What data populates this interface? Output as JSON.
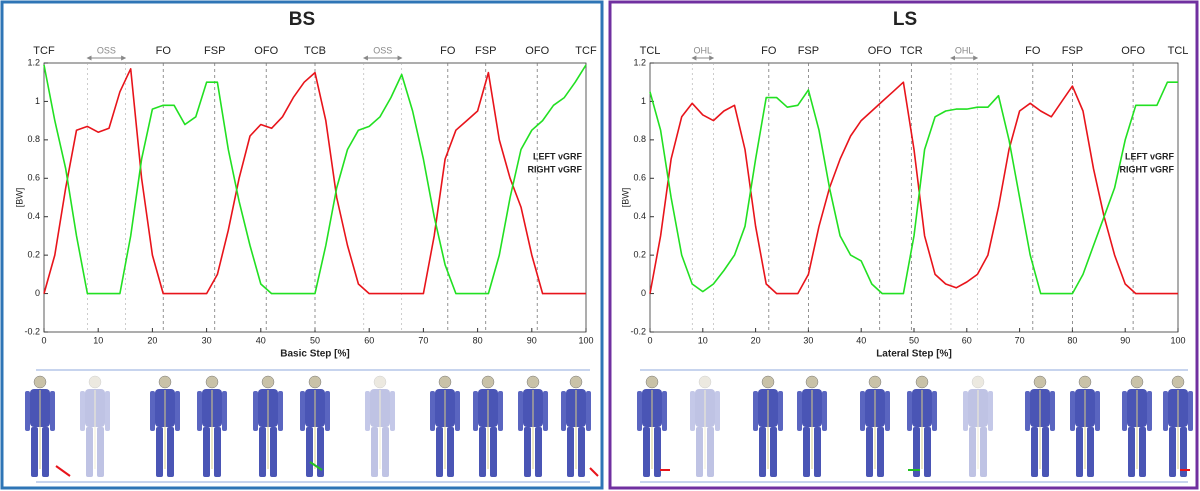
{
  "chart_data": [
    {
      "type": "line",
      "title": "BS",
      "x_label": "Basic Step [%]",
      "y_label": "[BW]",
      "xlim": [
        0,
        100
      ],
      "ylim": [
        -0.2,
        1.2
      ],
      "xticks": [
        0,
        10,
        20,
        30,
        40,
        50,
        60,
        70,
        80,
        90,
        100
      ],
      "yticks": [
        -0.2,
        0,
        0.2,
        0.4,
        0.6,
        0.8,
        1,
        1.2
      ],
      "annotations": [
        {
          "text": "TCF",
          "x": 0
        },
        {
          "text": "FO",
          "x": 22
        },
        {
          "text": "FSP",
          "x": 31.5
        },
        {
          "text": "OFO",
          "x": 41
        },
        {
          "text": "TCB",
          "x": 50
        },
        {
          "text": "FO",
          "x": 74.5
        },
        {
          "text": "FSP",
          "x": 81.5
        },
        {
          "text": "OFO",
          "x": 91
        },
        {
          "text": "TCF",
          "x": 100
        }
      ],
      "spans": [
        {
          "text": "OSS",
          "x0": 8,
          "x1": 15
        },
        {
          "text": "OSS",
          "x0": 59,
          "x1": 66
        }
      ],
      "x": [
        0,
        2,
        4,
        6,
        8,
        10,
        12,
        14,
        16,
        18,
        20,
        22,
        24,
        26,
        28,
        30,
        32,
        34,
        36,
        38,
        40,
        42,
        44,
        46,
        48,
        50,
        52,
        54,
        56,
        58,
        60,
        62,
        64,
        66,
        68,
        70,
        72,
        74,
        76,
        78,
        80,
        82,
        84,
        86,
        88,
        90,
        92,
        94,
        96,
        98,
        100
      ],
      "series": [
        {
          "name": "LEFT vGRF",
          "color": "#e8141b",
          "values": [
            0,
            0.2,
            0.55,
            0.85,
            0.87,
            0.84,
            0.86,
            1.05,
            1.17,
            0.6,
            0.2,
            0,
            0,
            0,
            0,
            0,
            0.1,
            0.33,
            0.6,
            0.82,
            0.88,
            0.86,
            0.92,
            1.02,
            1.1,
            1.15,
            0.9,
            0.5,
            0.25,
            0.05,
            0,
            0,
            0,
            0,
            0,
            0,
            0.3,
            0.7,
            0.85,
            0.9,
            0.95,
            1.15,
            0.8,
            0.6,
            0.45,
            0.2,
            0,
            0,
            0,
            0,
            0
          ]
        },
        {
          "name": "RIGHT vGRF",
          "color": "#22e022",
          "values": [
            1.19,
            0.9,
            0.65,
            0.3,
            0,
            0,
            0,
            0,
            0.3,
            0.7,
            0.96,
            0.98,
            0.98,
            0.88,
            0.92,
            1.1,
            1.1,
            0.75,
            0.48,
            0.25,
            0.05,
            0,
            0,
            0,
            0,
            0,
            0.25,
            0.55,
            0.75,
            0.85,
            0.87,
            0.92,
            1.02,
            1.14,
            0.95,
            0.7,
            0.4,
            0.15,
            0,
            0,
            0,
            0,
            0.2,
            0.5,
            0.75,
            0.85,
            0.9,
            0.98,
            1.02,
            1.1,
            1.19
          ]
        }
      ]
    },
    {
      "type": "line",
      "title": "LS",
      "x_label": "Lateral Step [%]",
      "y_label": "[BW]",
      "xlim": [
        0,
        100
      ],
      "ylim": [
        -0.2,
        1.2
      ],
      "xticks": [
        0,
        10,
        20,
        30,
        40,
        50,
        60,
        70,
        80,
        90,
        100
      ],
      "yticks": [
        -0.2,
        0,
        0.2,
        0.4,
        0.6,
        0.8,
        1,
        1.2
      ],
      "annotations": [
        {
          "text": "TCL",
          "x": 0
        },
        {
          "text": "FO",
          "x": 22.5
        },
        {
          "text": "FSP",
          "x": 30
        },
        {
          "text": "OFO",
          "x": 43.5
        },
        {
          "text": "TCR",
          "x": 49.5
        },
        {
          "text": "FO",
          "x": 72.5
        },
        {
          "text": "FSP",
          "x": 80
        },
        {
          "text": "OFO",
          "x": 91.5
        },
        {
          "text": "TCL",
          "x": 100
        }
      ],
      "spans": [
        {
          "text": "OHL",
          "x0": 8,
          "x1": 12
        },
        {
          "text": "OHL",
          "x0": 57,
          "x1": 62
        }
      ],
      "x": [
        0,
        2,
        4,
        6,
        8,
        10,
        12,
        14,
        16,
        18,
        20,
        22,
        24,
        26,
        28,
        30,
        32,
        34,
        36,
        38,
        40,
        42,
        44,
        46,
        48,
        50,
        52,
        54,
        56,
        58,
        60,
        62,
        64,
        66,
        68,
        70,
        72,
        74,
        76,
        78,
        80,
        82,
        84,
        86,
        88,
        90,
        92,
        94,
        96,
        98,
        100
      ],
      "series": [
        {
          "name": "LEFT vGRF",
          "color": "#e8141b",
          "values": [
            0,
            0.3,
            0.7,
            0.92,
            0.99,
            0.93,
            0.9,
            0.95,
            0.98,
            0.75,
            0.35,
            0.05,
            0,
            0,
            0,
            0.1,
            0.35,
            0.55,
            0.7,
            0.82,
            0.9,
            0.95,
            1.0,
            1.05,
            1.1,
            0.75,
            0.3,
            0.1,
            0.05,
            0.03,
            0.06,
            0.1,
            0.2,
            0.45,
            0.75,
            0.95,
            0.99,
            0.95,
            0.92,
            1.0,
            1.08,
            0.95,
            0.65,
            0.4,
            0.2,
            0.05,
            0,
            0,
            0,
            0,
            0
          ]
        },
        {
          "name": "RIGHT vGRF",
          "color": "#22e022",
          "values": [
            1.05,
            0.85,
            0.5,
            0.2,
            0.05,
            0.01,
            0.05,
            0.12,
            0.2,
            0.35,
            0.7,
            1.02,
            1.02,
            0.97,
            0.98,
            1.06,
            0.85,
            0.55,
            0.3,
            0.2,
            0.17,
            0.05,
            0,
            0,
            0,
            0.3,
            0.75,
            0.92,
            0.95,
            0.96,
            0.96,
            0.97,
            0.97,
            1.03,
            0.8,
            0.5,
            0.2,
            0,
            0,
            0,
            0,
            0.1,
            0.25,
            0.4,
            0.55,
            0.8,
            0.98,
            0.98,
            0.98,
            1.1,
            1.1
          ]
        }
      ]
    }
  ]
}
